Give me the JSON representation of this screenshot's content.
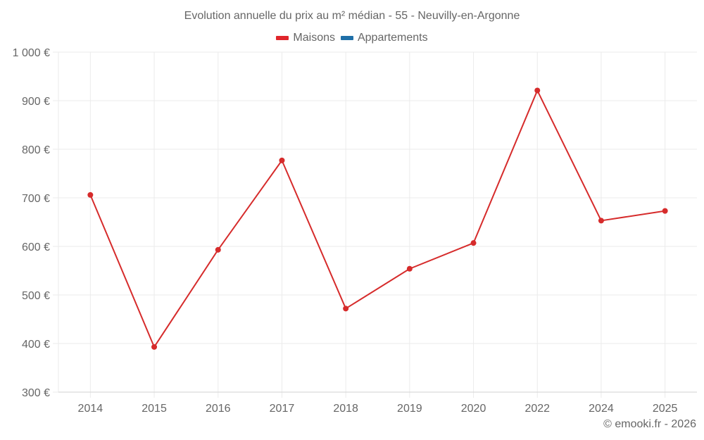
{
  "title": "Evolution annuelle du prix au m² médian - 55 - Neuvilly-en-Argonne",
  "legend": [
    {
      "label": "Maisons",
      "color": "#e0262b"
    },
    {
      "label": "Appartements",
      "color": "#1f6fa8"
    }
  ],
  "credit": "© emooki.fr - 2026",
  "colors": {
    "line": "#d62b2b",
    "grid": "#ebebeb",
    "axis": "#d9d9d9"
  },
  "chart_data": {
    "type": "line",
    "title": "Evolution annuelle du prix au m² médian - 55 - Neuvilly-en-Argonne",
    "xlabel": "",
    "ylabel": "",
    "categories": [
      "2014",
      "2015",
      "2016",
      "2017",
      "2018",
      "2019",
      "2020",
      "2022",
      "2024",
      "2025"
    ],
    "series": [
      {
        "name": "Maisons",
        "color": "#d62b2b",
        "values": [
          706,
          393,
          593,
          777,
          472,
          554,
          607,
          921,
          653,
          673
        ]
      },
      {
        "name": "Appartements",
        "color": "#1f6fa8",
        "values": []
      }
    ],
    "ylim": [
      300,
      1000
    ],
    "yticks": [
      300,
      400,
      500,
      600,
      700,
      800,
      900,
      1000
    ],
    "ytick_labels": [
      "300 €",
      "400 €",
      "500 €",
      "600 €",
      "700 €",
      "800 €",
      "900 €",
      "1 000 €"
    ],
    "grid": true,
    "legend_position": "top"
  }
}
